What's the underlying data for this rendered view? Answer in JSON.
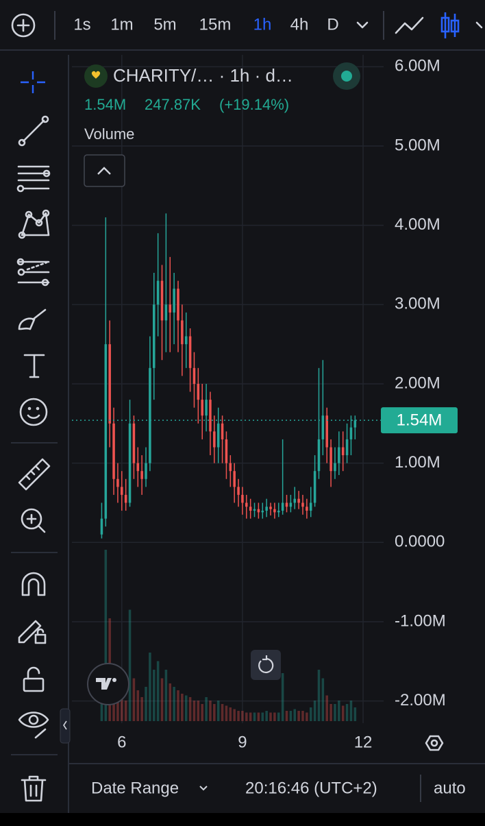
{
  "toolbar": {
    "intervals": [
      {
        "label": "1s",
        "active": false
      },
      {
        "label": "1m",
        "active": false
      },
      {
        "label": "5m",
        "active": false
      },
      {
        "label": "15m",
        "active": false
      },
      {
        "label": "1h",
        "active": true
      },
      {
        "label": "4h",
        "active": false
      },
      {
        "label": "D",
        "active": false
      }
    ]
  },
  "legend": {
    "symbol": "CHARITY/… · 1h · d…",
    "price": "1.54M",
    "change": "247.87K",
    "change_pct": "(+19.14%)",
    "indicator": "Volume"
  },
  "bottom_bar": {
    "date_range": "Date Range",
    "clock": "20:16:46 (UTC+2)",
    "scale": "auto"
  },
  "chart_data": {
    "type": "candlestick",
    "grid": true,
    "up_color": "#26a69a",
    "down_color": "#ef5350",
    "x": [
      5.5,
      5.6,
      5.7,
      5.8,
      5.9,
      6.0,
      6.1,
      6.2,
      6.3,
      6.4,
      6.5,
      6.6,
      6.7,
      6.8,
      6.9,
      7.0,
      7.1,
      7.2,
      7.3,
      7.4,
      7.5,
      7.6,
      7.7,
      7.8,
      7.9,
      8.0,
      8.1,
      8.2,
      8.3,
      8.4,
      8.5,
      8.6,
      8.7,
      8.8,
      8.9,
      9.0,
      9.1,
      9.2,
      9.3,
      9.4,
      9.5,
      9.6,
      9.7,
      9.8,
      9.9,
      10.0,
      10.1,
      10.2,
      10.3,
      10.4,
      10.5,
      10.6,
      10.7,
      10.8,
      10.9,
      11.0,
      11.1,
      11.2,
      11.3,
      11.4,
      11.5,
      11.6,
      11.7,
      11.8
    ],
    "open": [
      0.1,
      0.3,
      2.5,
      1.5,
      0.8,
      0.7,
      0.6,
      0.5,
      1.5,
      1.0,
      0.9,
      0.8,
      1.0,
      2.2,
      3.0,
      3.3,
      2.8,
      3.0,
      2.9,
      3.2,
      2.8,
      2.5,
      2.6,
      2.2,
      2.0,
      1.8,
      1.6,
      1.8,
      1.4,
      1.2,
      1.5,
      1.3,
      1.0,
      0.9,
      0.7,
      0.6,
      0.5,
      0.45,
      0.4,
      0.42,
      0.38,
      0.4,
      0.45,
      0.42,
      0.38,
      0.4,
      0.5,
      0.45,
      0.5,
      0.55,
      0.5,
      0.45,
      0.4,
      0.5,
      0.9,
      1.3,
      1.6,
      1.2,
      0.9,
      1.0,
      1.2,
      1.1,
      1.3,
      1.45
    ],
    "high": [
      0.5,
      4.1,
      2.8,
      1.7,
      1.0,
      0.9,
      0.8,
      1.8,
      1.6,
      1.2,
      1.1,
      1.2,
      2.6,
      3.4,
      3.9,
      3.5,
      4.15,
      3.6,
      3.4,
      3.3,
      3.0,
      2.9,
      2.7,
      2.4,
      2.2,
      2.0,
      2.0,
      1.9,
      1.6,
      1.7,
      1.6,
      1.4,
      1.1,
      1.0,
      0.8,
      0.7,
      0.6,
      0.55,
      0.5,
      0.5,
      0.5,
      0.55,
      0.5,
      0.5,
      0.5,
      1.3,
      0.6,
      0.6,
      0.7,
      0.65,
      0.6,
      0.55,
      0.7,
      1.1,
      2.2,
      2.3,
      1.7,
      1.3,
      1.2,
      1.4,
      1.4,
      1.5,
      1.6,
      1.6
    ],
    "low": [
      0.05,
      0.2,
      1.2,
      0.6,
      0.5,
      0.4,
      0.4,
      0.45,
      0.8,
      0.7,
      0.6,
      0.7,
      0.9,
      1.8,
      2.6,
      2.3,
      2.4,
      2.4,
      2.5,
      2.4,
      2.1,
      2.2,
      1.9,
      1.7,
      1.5,
      1.3,
      1.4,
      1.1,
      1.0,
      1.0,
      1.0,
      0.8,
      0.7,
      0.5,
      0.45,
      0.35,
      0.3,
      0.3,
      0.32,
      0.3,
      0.3,
      0.32,
      0.34,
      0.3,
      0.32,
      0.35,
      0.38,
      0.38,
      0.42,
      0.42,
      0.35,
      0.3,
      0.32,
      0.45,
      0.8,
      1.1,
      1.0,
      0.7,
      0.8,
      0.85,
      0.9,
      1.0,
      1.1,
      1.3
    ],
    "close": [
      0.3,
      2.5,
      1.5,
      0.8,
      0.7,
      0.6,
      0.5,
      1.5,
      1.0,
      0.9,
      0.8,
      1.0,
      2.2,
      3.0,
      3.3,
      2.8,
      3.0,
      2.9,
      3.2,
      2.8,
      2.5,
      2.6,
      2.2,
      2.0,
      1.8,
      1.6,
      1.8,
      1.4,
      1.2,
      1.5,
      1.3,
      1.0,
      0.9,
      0.7,
      0.6,
      0.5,
      0.45,
      0.4,
      0.42,
      0.38,
      0.4,
      0.45,
      0.42,
      0.38,
      0.4,
      0.5,
      0.45,
      0.5,
      0.55,
      0.5,
      0.45,
      0.4,
      0.5,
      0.9,
      1.3,
      1.6,
      1.2,
      0.9,
      1.0,
      1.2,
      1.1,
      1.3,
      1.45,
      1.54
    ],
    "volume": [
      20,
      100,
      60,
      30,
      18,
      15,
      12,
      65,
      25,
      18,
      14,
      20,
      40,
      30,
      35,
      25,
      30,
      22,
      20,
      18,
      16,
      15,
      14,
      12,
      12,
      10,
      14,
      12,
      10,
      12,
      10,
      9,
      8,
      7,
      6,
      6,
      5,
      5,
      5,
      5,
      5,
      6,
      5,
      5,
      5,
      28,
      6,
      6,
      7,
      6,
      6,
      5,
      8,
      12,
      30,
      25,
      15,
      10,
      10,
      12,
      9,
      10,
      12,
      8
    ],
    "volume_lim": [
      0,
      100
    ],
    "xlim": [
      4.76,
      12.51
    ],
    "xticks": [
      6,
      9,
      12
    ],
    "ylim": [
      -2.28,
      6.15
    ],
    "yticks": [
      {
        "value": 6,
        "label": "6.00M"
      },
      {
        "value": 5,
        "label": "5.00M"
      },
      {
        "value": 4,
        "label": "4.00M"
      },
      {
        "value": 3,
        "label": "3.00M"
      },
      {
        "value": 2,
        "label": "2.00M"
      },
      {
        "value": 1,
        "label": "1.00M"
      },
      {
        "value": 0,
        "label": "0.0000"
      },
      {
        "value": -1,
        "label": "-1.00M"
      },
      {
        "value": -2,
        "label": "-2.00M"
      }
    ],
    "price_line": {
      "value": 1.54,
      "label": "1.54M"
    }
  }
}
